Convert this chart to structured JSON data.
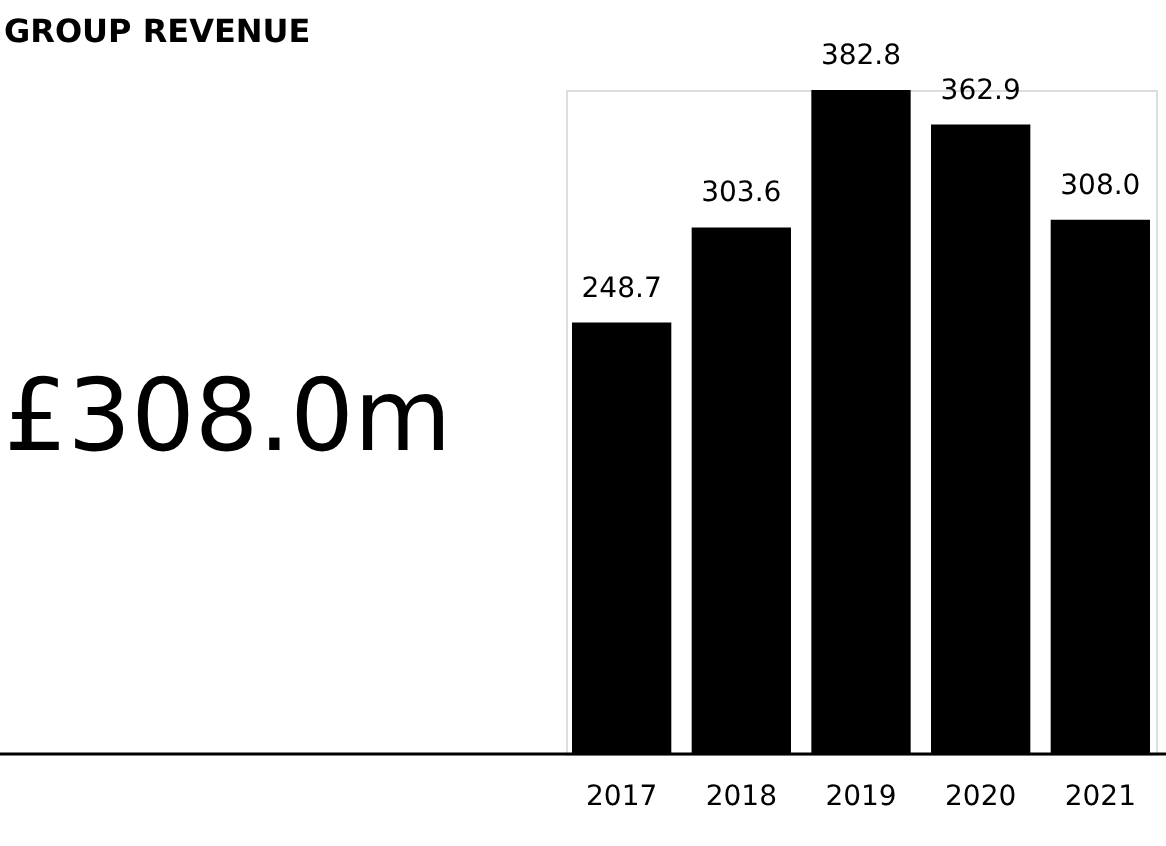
{
  "chart_data": {
    "type": "bar",
    "title": "GROUP REVENUE",
    "annotations": [
      "£308.0m"
    ],
    "categories": [
      "2017",
      "2018",
      "2019",
      "2020",
      "2021"
    ],
    "values": [
      248.7,
      303.6,
      382.8,
      362.9,
      308.0
    ],
    "color": "#000000",
    "value_labels": [
      "248.7",
      "303.6",
      "382.8",
      "362.9",
      "308.0"
    ],
    "grid": false
  }
}
